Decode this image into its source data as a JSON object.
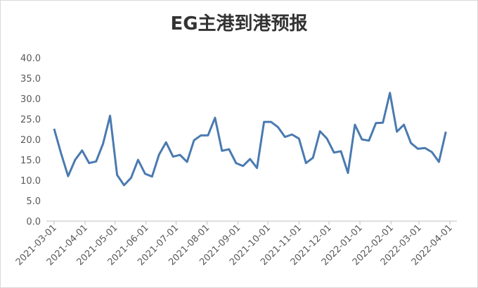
{
  "chart_data": {
    "type": "line",
    "title": "EG主港到港预报",
    "x": [
      "2021-03-01",
      "2021-03-08",
      "2021-03-15",
      "2021-03-22",
      "2021-03-29",
      "2021-04-05",
      "2021-04-12",
      "2021-04-19",
      "2021-04-26",
      "2021-05-03",
      "2021-05-10",
      "2021-05-17",
      "2021-05-24",
      "2021-05-31",
      "2021-06-07",
      "2021-06-14",
      "2021-06-21",
      "2021-06-28",
      "2021-07-05",
      "2021-07-12",
      "2021-07-19",
      "2021-07-26",
      "2021-08-02",
      "2021-08-09",
      "2021-08-16",
      "2021-08-23",
      "2021-08-30",
      "2021-09-06",
      "2021-09-13",
      "2021-09-20",
      "2021-09-27",
      "2021-10-04",
      "2021-10-11",
      "2021-10-18",
      "2021-10-25",
      "2021-11-01",
      "2021-11-08",
      "2021-11-15",
      "2021-11-22",
      "2021-11-29",
      "2021-12-06",
      "2021-12-13",
      "2021-12-20",
      "2021-12-27",
      "2022-01-03",
      "2022-01-10",
      "2022-01-17",
      "2022-01-24",
      "2022-01-31",
      "2022-02-07",
      "2022-02-14",
      "2022-02-21",
      "2022-02-28",
      "2022-03-07",
      "2022-03-14",
      "2022-03-21",
      "2022-03-28"
    ],
    "series": [
      {
        "color": "#4a7ab0",
        "values": [
          22.6,
          16.5,
          11.0,
          15.0,
          17.3,
          14.2,
          14.6,
          19.0,
          25.8,
          11.3,
          8.8,
          10.6,
          15.0,
          11.6,
          10.9,
          16.3,
          19.3,
          15.8,
          16.2,
          14.5,
          19.8,
          21.0,
          21.0,
          25.3,
          17.2,
          17.6,
          14.2,
          13.5,
          15.2,
          13.0,
          24.3,
          24.3,
          23.0,
          20.6,
          21.2,
          20.2,
          14.2,
          15.5,
          22.0,
          20.2,
          16.8,
          17.1,
          11.8,
          23.6,
          20.0,
          19.7,
          24.0,
          24.1,
          31.4,
          21.9,
          23.6,
          19.1,
          17.7,
          17.9,
          16.9,
          14.5,
          21.9
        ]
      }
    ],
    "xlim": [
      "2021-03-01",
      "2022-04-01"
    ],
    "xticks": [
      "2021-03-01",
      "2021-04-01",
      "2021-05-01",
      "2021-06-01",
      "2021-07-01",
      "2021-08-01",
      "2021-09-01",
      "2021-10-01",
      "2021-11-01",
      "2021-12-01",
      "2022-01-01",
      "2022-02-01",
      "2022-03-01",
      "2022-04-01"
    ],
    "ylim": [
      0,
      40
    ],
    "yticks": [
      {
        "value": 0,
        "label": "0.0"
      },
      {
        "value": 5,
        "label": "5.0"
      },
      {
        "value": 10,
        "label": "10.0"
      },
      {
        "value": 15,
        "label": "15.0"
      },
      {
        "value": 20,
        "label": "20.0"
      },
      {
        "value": 25,
        "label": "25.0"
      },
      {
        "value": 30,
        "label": "30.0"
      },
      {
        "value": 35,
        "label": "35.0"
      },
      {
        "value": 40,
        "label": "40.0"
      }
    ]
  }
}
